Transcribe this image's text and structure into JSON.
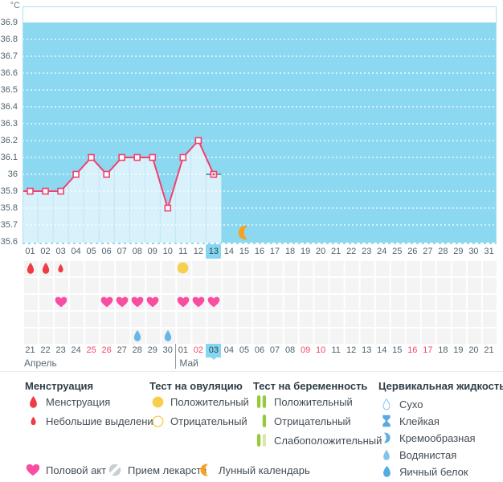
{
  "colors": {
    "sky": "#8CD8F1",
    "area_fill": "#D9F1FB",
    "area_separator": "#BEE5F5",
    "grid_dot": "#FFFFFF",
    "plot_border": "#ABE0F4",
    "line": "#F2406E",
    "today_edge": "#6E98AC",
    "today_bg": "#84D6F2",
    "blood": "#EE3B44",
    "heart": "#F94DA1",
    "ovulation": "#F7CE4D",
    "preg_pos": "#97C93D",
    "preg_weak": "#D8E7AC",
    "fluid_dry": "#8CCAEE",
    "fluid_sticky": "#57A9DF",
    "fluid_creamy": "#5FAEE2",
    "fluid_watery": "#82C5EC",
    "fluid_eggwhite": "#55ACE3",
    "fluid_chart": "#68B6E7",
    "moon": "#F6A21F",
    "pill": "#C9CED2"
  },
  "chart_data": {
    "type": "line",
    "title": "",
    "ylabel": "°C",
    "xlabel": "",
    "ylim": [
      35.6,
      37.0
    ],
    "yticks": [
      "36.9",
      "36.8",
      "36.7",
      "36.6",
      "36.5",
      "36.4",
      "36.3",
      "36.2",
      "36.1",
      "36",
      "35.9",
      "35.8",
      "35.7",
      "35.6"
    ],
    "x_days_total": 31,
    "series": [
      {
        "name": "basal-temperature",
        "points": [
          {
            "day": 1,
            "temp": 35.9
          },
          {
            "day": 2,
            "temp": 35.9
          },
          {
            "day": 3,
            "temp": 35.9
          },
          {
            "day": 4,
            "temp": 36.0
          },
          {
            "day": 5,
            "temp": 36.1
          },
          {
            "day": 6,
            "temp": 36.0
          },
          {
            "day": 7,
            "temp": 36.1
          },
          {
            "day": 8,
            "temp": 36.1
          },
          {
            "day": 9,
            "temp": 36.1
          },
          {
            "day": 10,
            "temp": 35.8
          },
          {
            "day": 11,
            "temp": 36.1
          },
          {
            "day": 12,
            "temp": 36.2
          },
          {
            "day": 13,
            "temp": 36.0
          }
        ]
      }
    ],
    "today_cycle_day": 13,
    "moon_marker_day": 15,
    "grid": "dotted-horizontal",
    "legend_position": "bottom"
  },
  "cycle_day_row": {
    "days": [
      "01",
      "02",
      "03",
      "04",
      "05",
      "06",
      "07",
      "08",
      "09",
      "10",
      "11",
      "12",
      "13",
      "14",
      "15",
      "16",
      "17",
      "18",
      "19",
      "20",
      "21",
      "22",
      "23",
      "24",
      "25",
      "26",
      "27",
      "28",
      "29",
      "30",
      "31"
    ],
    "highlighted_day": "13"
  },
  "icon_rows": [
    {
      "name": "menstruation-ovulation-row",
      "icons": [
        {
          "day": 1,
          "type": "drop-large"
        },
        {
          "day": 2,
          "type": "drop-large"
        },
        {
          "day": 3,
          "type": "drop-small"
        },
        {
          "day": 11,
          "type": "ovulation-positive"
        }
      ]
    },
    {
      "name": "pregnancy-test-row",
      "icons": []
    },
    {
      "name": "intercourse-row",
      "icons": [
        {
          "day": 3,
          "type": "heart"
        },
        {
          "day": 6,
          "type": "heart"
        },
        {
          "day": 7,
          "type": "heart"
        },
        {
          "day": 8,
          "type": "heart"
        },
        {
          "day": 9,
          "type": "heart"
        },
        {
          "day": 11,
          "type": "heart"
        },
        {
          "day": 12,
          "type": "heart"
        },
        {
          "day": 13,
          "type": "heart"
        }
      ]
    },
    {
      "name": "medication-row",
      "icons": []
    },
    {
      "name": "cervical-fluid-row",
      "icons": [
        {
          "day": 8,
          "type": "fluid-chart-drop"
        },
        {
          "day": 10,
          "type": "fluid-chart-drop"
        }
      ]
    }
  ],
  "calendar_row": {
    "dates": [
      {
        "label": "21"
      },
      {
        "label": "22"
      },
      {
        "label": "23"
      },
      {
        "label": "24"
      },
      {
        "label": "25",
        "weekend": true
      },
      {
        "label": "26",
        "weekend": true
      },
      {
        "label": "27"
      },
      {
        "label": "28"
      },
      {
        "label": "29"
      },
      {
        "label": "30"
      },
      {
        "label": "01"
      },
      {
        "label": "02",
        "weekend": true
      },
      {
        "label": "03",
        "today": true
      },
      {
        "label": "04"
      },
      {
        "label": "05"
      },
      {
        "label": "06"
      },
      {
        "label": "07"
      },
      {
        "label": "08"
      },
      {
        "label": "09",
        "weekend": true
      },
      {
        "label": "10",
        "weekend": true
      },
      {
        "label": "11"
      },
      {
        "label": "12"
      },
      {
        "label": "13"
      },
      {
        "label": "14"
      },
      {
        "label": "15"
      },
      {
        "label": "16",
        "weekend": true
      },
      {
        "label": "17",
        "weekend": true
      },
      {
        "label": "18"
      },
      {
        "label": "19"
      },
      {
        "label": "20"
      },
      {
        "label": "21"
      }
    ],
    "month_break_after_index": 9,
    "months": [
      {
        "label": "Апрель"
      },
      {
        "label": "Май"
      }
    ]
  },
  "legend": {
    "columns": [
      {
        "header": "Менструация",
        "items": [
          {
            "icon": "drop-large",
            "label": "Менструация"
          },
          {
            "icon": "drop-small",
            "label": "Небольшие выделения"
          }
        ]
      },
      {
        "header": "Тест на овуляцию",
        "items": [
          {
            "icon": "ovulation-positive",
            "label": "Положительный"
          },
          {
            "icon": "ovulation-negative",
            "label": "Отрицательный"
          }
        ]
      },
      {
        "header": "Тест на беременность",
        "items": [
          {
            "icon": "preg-positive",
            "label": "Положительный"
          },
          {
            "icon": "preg-negative",
            "label": "Отрицательный"
          },
          {
            "icon": "preg-weak",
            "label": "Слабоположительный"
          }
        ]
      },
      {
        "header": "Цервикальная жидкость",
        "items": [
          {
            "icon": "fluid-dry",
            "label": "Сухо"
          },
          {
            "icon": "fluid-sticky",
            "label": "Клейкая"
          },
          {
            "icon": "fluid-creamy",
            "label": "Кремообразная"
          },
          {
            "icon": "fluid-watery",
            "label": "Водянистая"
          },
          {
            "icon": "fluid-eggwhite",
            "label": "Яичный белок"
          }
        ]
      }
    ],
    "extra_items": [
      {
        "icon": "heart",
        "label": "Половой акт"
      },
      {
        "icon": "pill",
        "label": "Прием лекарств"
      },
      {
        "icon": "moon",
        "label": "Лунный календарь"
      }
    ]
  }
}
